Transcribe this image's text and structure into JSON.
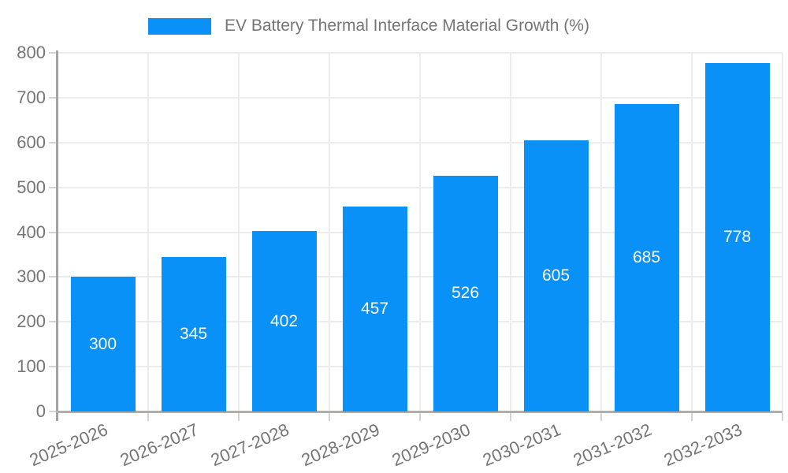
{
  "legend": {
    "label": "EV Battery Thermal Interface Material Growth (%)"
  },
  "chart_data": {
    "type": "bar",
    "title": "EV Battery Thermal Interface Material Growth (%)",
    "categories": [
      "2025-2026",
      "2026-2027",
      "2027-2028",
      "2028-2029",
      "2029-2030",
      "2030-2031",
      "2031-2032",
      "2032-2033"
    ],
    "values": [
      300,
      345,
      402,
      457,
      526,
      605,
      685,
      778
    ],
    "xlabel": "",
    "ylabel": "",
    "ylim": [
      0,
      800
    ],
    "yticks": [
      0,
      100,
      200,
      300,
      400,
      500,
      600,
      700,
      800
    ],
    "grid": true,
    "legend_position": "top-center",
    "bar_color": "#0a91f8",
    "value_label_color": "#ffffff",
    "axis_text_color": "#757575"
  }
}
